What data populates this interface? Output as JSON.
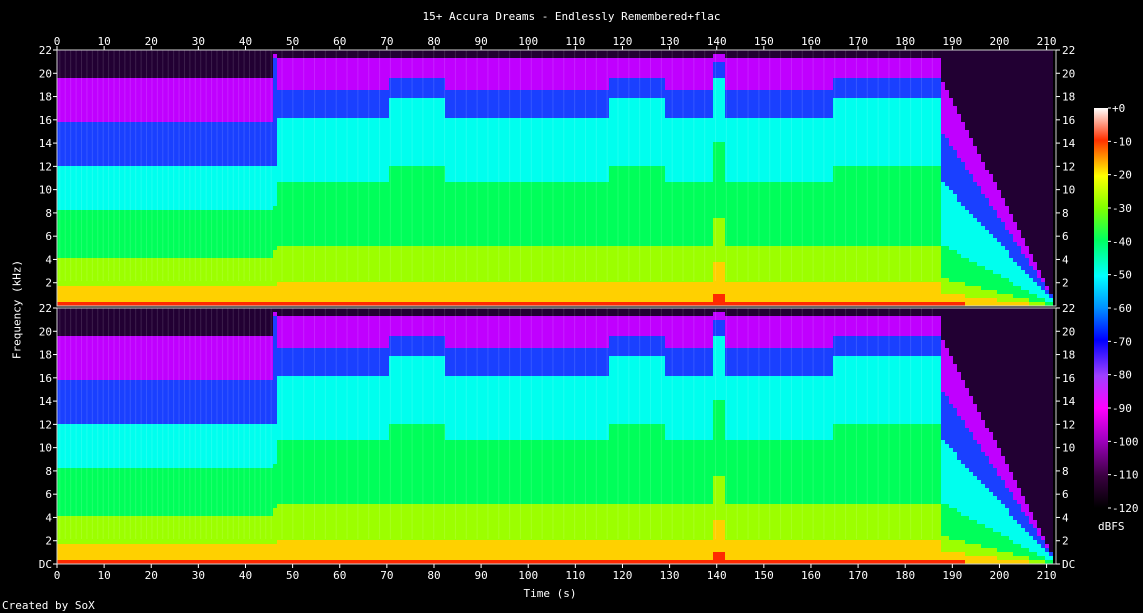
{
  "title": "15+ Accura Dreams - Endlessly Remembered+flac",
  "footer": "Created by SoX",
  "chart_data": {
    "type": "heatmap",
    "title": "15+ Accura Dreams - Endlessly Remembered+flac",
    "xlabel": "Time (s)",
    "ylabel": "Frequency (kHz)",
    "xlim": [
      0,
      210
    ],
    "x_ticks": [
      0,
      10,
      20,
      30,
      40,
      50,
      60,
      70,
      80,
      90,
      100,
      110,
      120,
      130,
      140,
      150,
      160,
      170,
      180,
      190,
      200,
      210
    ],
    "y_ticks_top": [
      "22",
      "20",
      "18",
      "16",
      "14",
      "12",
      "10",
      "8",
      "6",
      "4",
      "2"
    ],
    "y_ticks_bottom": [
      "22",
      "20",
      "18",
      "16",
      "14",
      "12",
      "10",
      "8",
      "6",
      "4",
      "2",
      "DC"
    ],
    "ylim_khz": [
      0,
      22
    ],
    "channels": 2,
    "colorbar": {
      "label": "dBFS",
      "ticks": [
        "+0",
        "-10",
        "-20",
        "-30",
        "-40",
        "-50",
        "-60",
        "-70",
        "-80",
        "-90",
        "-100",
        "-110",
        "-120"
      ],
      "range_db": [
        -120,
        0
      ]
    },
    "sections": [
      {
        "start": 0,
        "end": 45,
        "character": "sparse"
      },
      {
        "start": 45,
        "end": 46,
        "character": "transition"
      },
      {
        "start": 46,
        "end": 70,
        "character": "medium"
      },
      {
        "start": 70,
        "end": 82,
        "character": "dense"
      },
      {
        "start": 82,
        "end": 117,
        "character": "medium"
      },
      {
        "start": 117,
        "end": 129,
        "character": "dense"
      },
      {
        "start": 129,
        "end": 139,
        "character": "medium"
      },
      {
        "start": 139,
        "end": 141,
        "character": "burst"
      },
      {
        "start": 141,
        "end": 164,
        "character": "medium"
      },
      {
        "start": 164,
        "end": 187,
        "character": "dense"
      },
      {
        "start": 187,
        "end": 211,
        "character": "fade"
      }
    ]
  }
}
